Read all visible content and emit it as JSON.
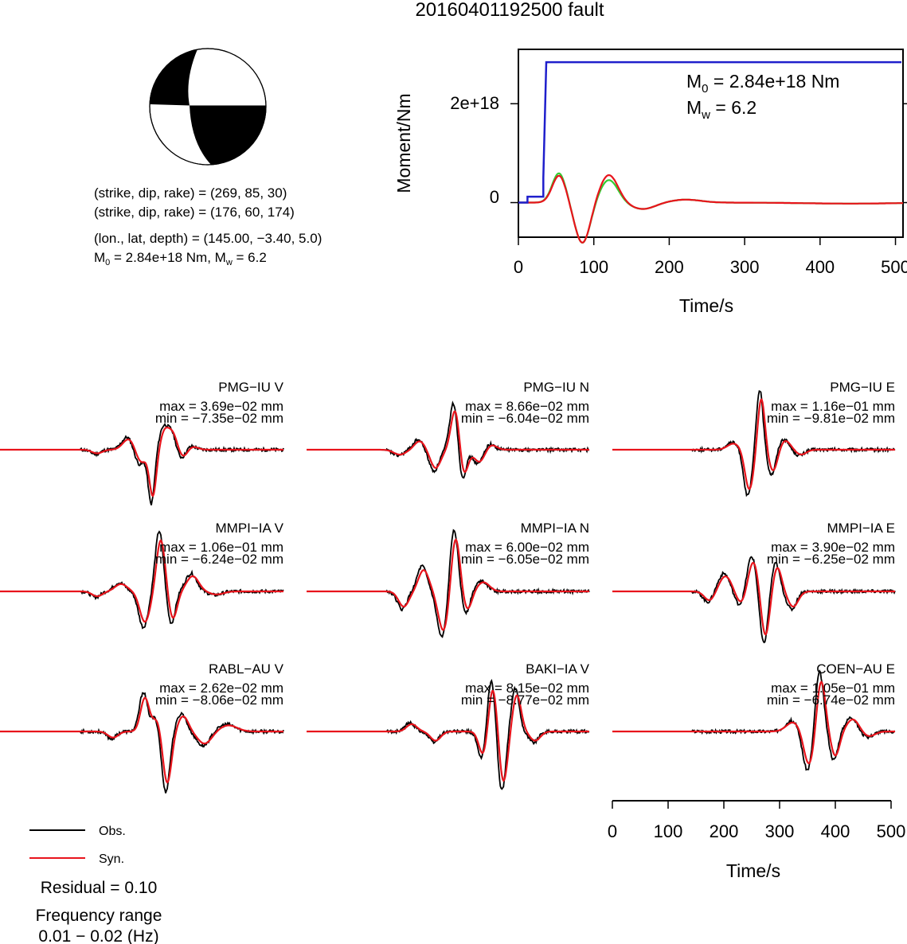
{
  "title": "20160401192500 fault",
  "colors": {
    "obs": "#000000",
    "syn": "#e8141c",
    "moment_step": "#1f1fcc",
    "moment_green": "#33cc33",
    "moment_red": "#e8141c"
  },
  "beachball": {
    "label": "focal mechanism"
  },
  "info": {
    "line1": "(strike, dip, rake) = (269, 85, 30)",
    "line2": "(strike, dip, rake) = (176, 60, 174)",
    "line3": "(lon., lat, depth) = (145.00, −3.40, 5.0)",
    "m0_prefix": "M",
    "m0_sub": "0",
    "m0_value": " = 2.84e+18 Nm, M",
    "mw_sub": "w",
    "mw_value": " = 6.2"
  },
  "moment_panel": {
    "ylabel": "Moment/Nm",
    "xlabel": "Time/s",
    "yticks": [
      "0",
      "2e+18"
    ],
    "xticks": [
      "0",
      "100",
      "200",
      "300",
      "400",
      "500"
    ],
    "m0_text_prefix": "M",
    "m0_text_sub": "0",
    "m0_text_value": " = 2.84e+18 Nm",
    "mw_text_prefix": "M",
    "mw_text_sub": "w",
    "mw_text_value": " = 6.2"
  },
  "traces": [
    {
      "name": "PMG−IU V",
      "max": "max = 3.69e−02 mm",
      "min": "min = −7.35e−02 mm"
    },
    {
      "name": "PMG−IU N",
      "max": "max = 8.66e−02 mm",
      "min": "min = −6.04e−02 mm"
    },
    {
      "name": "PMG−IU E",
      "max": "max = 1.16e−01 mm",
      "min": "min = −9.81e−02 mm"
    },
    {
      "name": "MMPI−IA V",
      "max": "max = 1.06e−01 mm",
      "min": "min = −6.24e−02 mm"
    },
    {
      "name": "MMPI−IA N",
      "max": "max = 6.00e−02 mm",
      "min": "min = −6.05e−02 mm"
    },
    {
      "name": "MMPI−IA E",
      "max": "max = 3.90e−02 mm",
      "min": "min = −6.25e−02 mm"
    },
    {
      "name": "RABL−AU V",
      "max": "max = 2.62e−02 mm",
      "min": "min = −8.06e−02 mm"
    },
    {
      "name": "BAKI−IA V",
      "max": "max = 8.15e−02 mm",
      "min": "min = −8.77e−02 mm"
    },
    {
      "name": "COEN−AU E",
      "max": "max = 1.05e−01 mm",
      "min": "min = −6.74e−02 mm"
    }
  ],
  "bottom_axis": {
    "xlabel": "Time/s",
    "xticks": [
      "0",
      "100",
      "200",
      "300",
      "400",
      "500"
    ]
  },
  "legend": {
    "obs": "Obs.",
    "syn": "Syn."
  },
  "footer": {
    "residual": "Residual = 0.10",
    "freq_title": "Frequency range",
    "freq_range": "0.01 − 0.02 (Hz)"
  },
  "chart_data": [
    {
      "type": "line",
      "title": "",
      "xlabel": "Time/s",
      "ylabel": "Moment/Nm",
      "xlim": [
        0,
        510
      ],
      "ylim": [
        -7e+17,
        3.1e+18
      ],
      "series": [
        {
          "x": [
            0,
            12,
            12,
            33,
            33,
            37,
            510
          ],
          "values": [
            0,
            0,
            1.2e+17,
            1.2e+17,
            5e+17,
            2.84e+18,
            2.84e+18
          ]
        }
      ]
    },
    {
      "type": "line",
      "title": "",
      "xlabel": "Time/s",
      "ylabel": "",
      "xlim": [
        0,
        510
      ],
      "series": [
        {
          "name": "Obs."
        },
        {
          "name": "Syn."
        }
      ]
    }
  ]
}
